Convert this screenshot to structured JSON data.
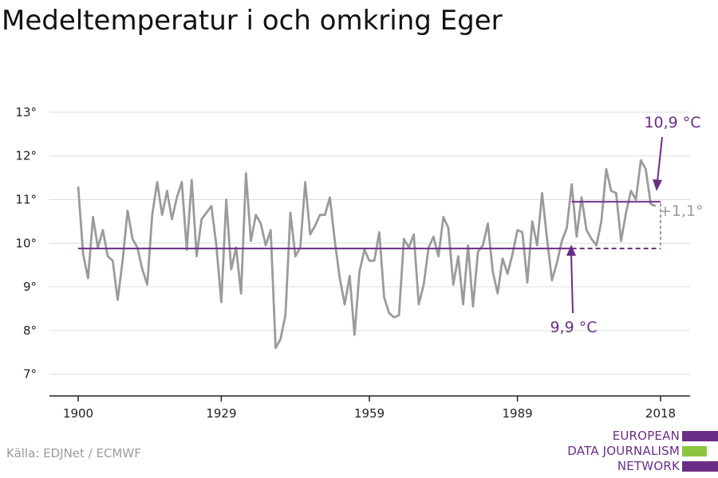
{
  "title": "Medeltemperatur i och omkring Eger",
  "source": "Källa: EDJNet / ECMWF",
  "logo": {
    "lines": [
      "EUROPEAN",
      "DATA JOURNALISM",
      "NETWORK"
    ],
    "colors": {
      "purple": "#6b2e86",
      "green": "#8cc63f"
    }
  },
  "chart_data": {
    "type": "line",
    "x_ticks": [
      1900,
      1929,
      1959,
      1989,
      2018
    ],
    "y_ticks": [
      7,
      8,
      9,
      10,
      11,
      12,
      13
    ],
    "y_tick_labels": [
      "7°",
      "8°",
      "9°",
      "10°",
      "11°",
      "12°",
      "13°"
    ],
    "xlim": [
      1900,
      2018
    ],
    "ylim": [
      6.5,
      13.2
    ],
    "grid": true,
    "series": [
      {
        "color": "#9b9b9b",
        "x_start": 1900,
        "values": [
          11.3,
          9.75,
          9.2,
          10.6,
          9.9,
          10.3,
          9.7,
          9.6,
          8.7,
          9.6,
          10.75,
          10.1,
          9.9,
          9.4,
          9.05,
          10.65,
          11.4,
          10.65,
          11.2,
          10.55,
          11.05,
          11.4,
          9.85,
          11.45,
          9.7,
          10.55,
          10.7,
          10.85,
          9.95,
          8.65,
          11.0,
          9.4,
          9.9,
          8.85,
          11.6,
          10.05,
          10.65,
          10.45,
          9.95,
          10.3,
          7.6,
          7.8,
          8.35,
          10.7,
          9.7,
          9.9,
          11.4,
          10.2,
          10.4,
          10.65,
          10.65,
          11.05,
          10.05,
          9.2,
          8.6,
          9.25,
          7.9,
          9.35,
          9.85,
          9.6,
          9.6,
          10.25,
          8.75,
          8.4,
          8.3,
          8.35,
          10.1,
          9.9,
          10.2,
          8.6,
          9.05,
          9.9,
          10.15,
          9.7,
          10.6,
          10.35,
          9.05,
          9.7,
          8.6,
          9.95,
          8.55,
          9.8,
          9.95,
          10.45,
          9.35,
          8.85,
          9.65,
          9.3,
          9.75,
          10.3,
          10.25,
          9.1,
          10.5,
          9.95,
          11.15,
          10.1,
          9.15,
          9.55,
          10.05,
          10.35,
          11.35,
          10.15,
          11.05,
          10.3,
          10.1,
          9.95,
          10.5,
          11.7,
          11.2,
          11.15,
          10.05,
          10.7,
          11.2,
          11.0,
          11.9,
          11.7,
          10.9,
          10.85
        ]
      }
    ],
    "baseline": {
      "value": 9.88,
      "from": 1900,
      "to": 2018,
      "color": "#6b2e86"
    },
    "recent": {
      "value": 10.95,
      "from": 2000,
      "to": 2018,
      "color": "#6b2e86"
    },
    "annotations": {
      "recent_label": "10,9 °C",
      "baseline_label": "9,9 °C",
      "diff_label": "+1,1°",
      "diff_color": "#9b9b9b"
    }
  }
}
